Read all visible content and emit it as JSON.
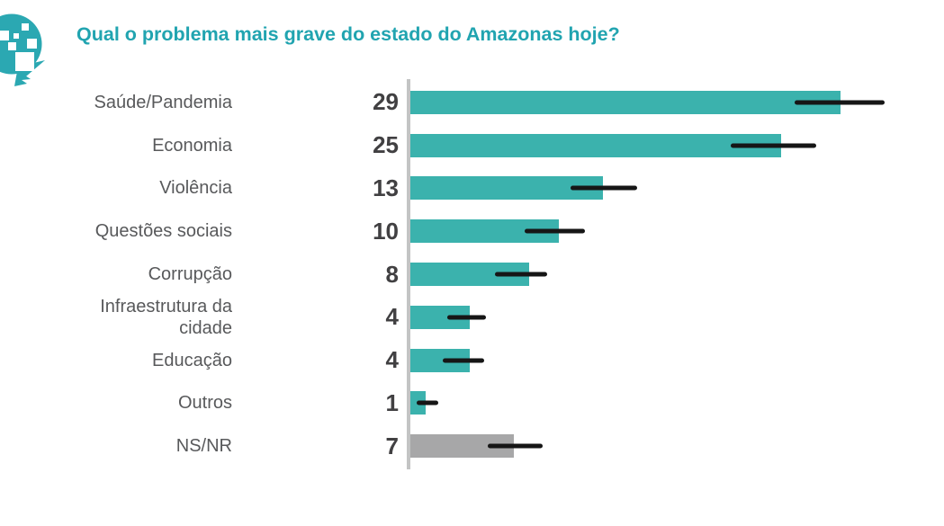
{
  "header": {
    "title": "Qual o problema mais grave do estado do Amazonas hoje?",
    "logo_icon": "speech-bubble-pixel-logo"
  },
  "colors": {
    "background": "#ffffff",
    "title_text": "#21a4b0",
    "logo": "#2ba8b2",
    "bar_teal": "#3bb2ad",
    "bar_gray": "#a7a7a8",
    "axis": "#c3c4c4",
    "error_bar": "#161616",
    "label_text": "#58595b",
    "value_text": "#414042"
  },
  "chart_data": {
    "type": "bar",
    "orientation": "horizontal",
    "title": "Qual o problema mais grave do estado do Amazonas hoje?",
    "categories": [
      "Saúde/Pandemia",
      "Economia",
      "Violência",
      "Questões sociais",
      "Corrupção",
      "Infraestrutura da cidade",
      "Educação",
      "Outros",
      "NS/NR"
    ],
    "values": [
      29,
      25,
      13,
      10,
      8,
      4,
      4,
      1,
      7
    ],
    "error_low": [
      25.9,
      21.6,
      10.8,
      7.7,
      5.7,
      2.5,
      2.2,
      0.4,
      5.2
    ],
    "error_high": [
      32.0,
      27.4,
      15.3,
      11.8,
      9.2,
      5.1,
      5.0,
      1.9,
      8.9
    ],
    "bar_colors": [
      "#3bb2ad",
      "#3bb2ad",
      "#3bb2ad",
      "#3bb2ad",
      "#3bb2ad",
      "#3bb2ad",
      "#3bb2ad",
      "#3bb2ad",
      "#a7a7a8"
    ],
    "value_label_side": "left-of-axis",
    "xlim": [
      0,
      36
    ],
    "grid": false,
    "legend": false,
    "error_bars": true
  }
}
